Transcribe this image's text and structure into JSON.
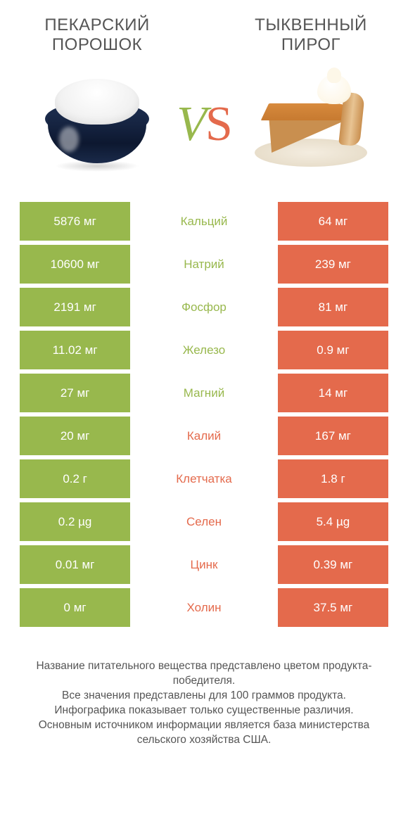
{
  "colors": {
    "left": "#98b84d",
    "right": "#e46a4c"
  },
  "header": {
    "left_title": "ПЕКАРСКИЙ ПОРОШОК",
    "right_title": "ТЫКВЕННЫЙ ПИРОГ",
    "vs_v": "V",
    "vs_s": "S"
  },
  "rows": [
    {
      "label": "Кальций",
      "left": "5876 мг",
      "right": "64 мг",
      "winner": "left"
    },
    {
      "label": "Натрий",
      "left": "10600 мг",
      "right": "239 мг",
      "winner": "left"
    },
    {
      "label": "Фосфор",
      "left": "2191 мг",
      "right": "81 мг",
      "winner": "left"
    },
    {
      "label": "Железо",
      "left": "11.02 мг",
      "right": "0.9 мг",
      "winner": "left"
    },
    {
      "label": "Магний",
      "left": "27 мг",
      "right": "14 мг",
      "winner": "left"
    },
    {
      "label": "Калий",
      "left": "20 мг",
      "right": "167 мг",
      "winner": "right"
    },
    {
      "label": "Клетчатка",
      "left": "0.2 г",
      "right": "1.8 г",
      "winner": "right"
    },
    {
      "label": "Селен",
      "left": "0.2 µg",
      "right": "5.4 µg",
      "winner": "right"
    },
    {
      "label": "Цинк",
      "left": "0.01 мг",
      "right": "0.39 мг",
      "winner": "right"
    },
    {
      "label": "Холин",
      "left": "0 мг",
      "right": "37.5 мг",
      "winner": "right"
    }
  ],
  "footer": {
    "l1": "Название питательного вещества представлено цветом продукта-победителя.",
    "l2": "Все значения представлены для 100 граммов продукта.",
    "l3": "Инфографика показывает только существенные различия.",
    "l4": "Основным источником информации является база министерства сельского хозяйства США."
  }
}
